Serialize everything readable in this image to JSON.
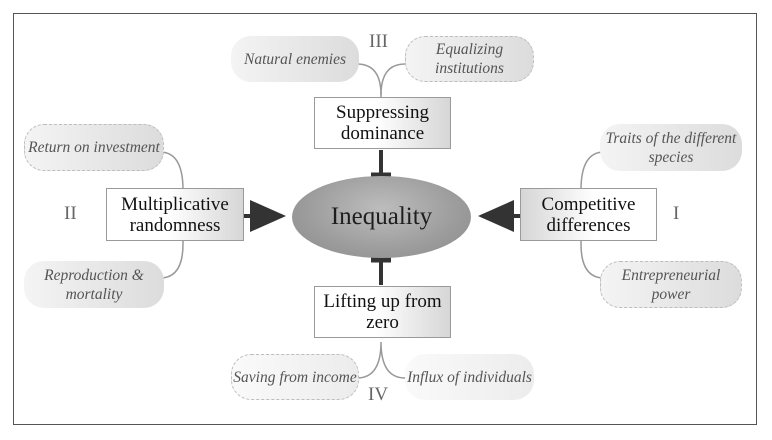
{
  "center": {
    "label": "Inequality"
  },
  "boxes": {
    "suppressing": {
      "label": "Suppressing dominance"
    },
    "multiplicative": {
      "label": "Multiplicative randomness"
    },
    "competitive": {
      "label": "Competitive differences"
    },
    "lifting": {
      "label": "Lifting up from zero"
    }
  },
  "romans": {
    "top": "III",
    "left": "II",
    "right": "I",
    "bottom": "IV"
  },
  "factors": {
    "natural_enemies": "Natural enemies",
    "equalizing_institutions": "Equalizing institutions",
    "return_on_investment": "Return on investment",
    "reproduction_mortality": "Reproduction & mortality",
    "traits_species": "Traits of the different species",
    "entrepreneurial_power": "Entrepreneurial power",
    "saving_income": "Saving from income",
    "influx_individuals": "Influx of individuals"
  }
}
